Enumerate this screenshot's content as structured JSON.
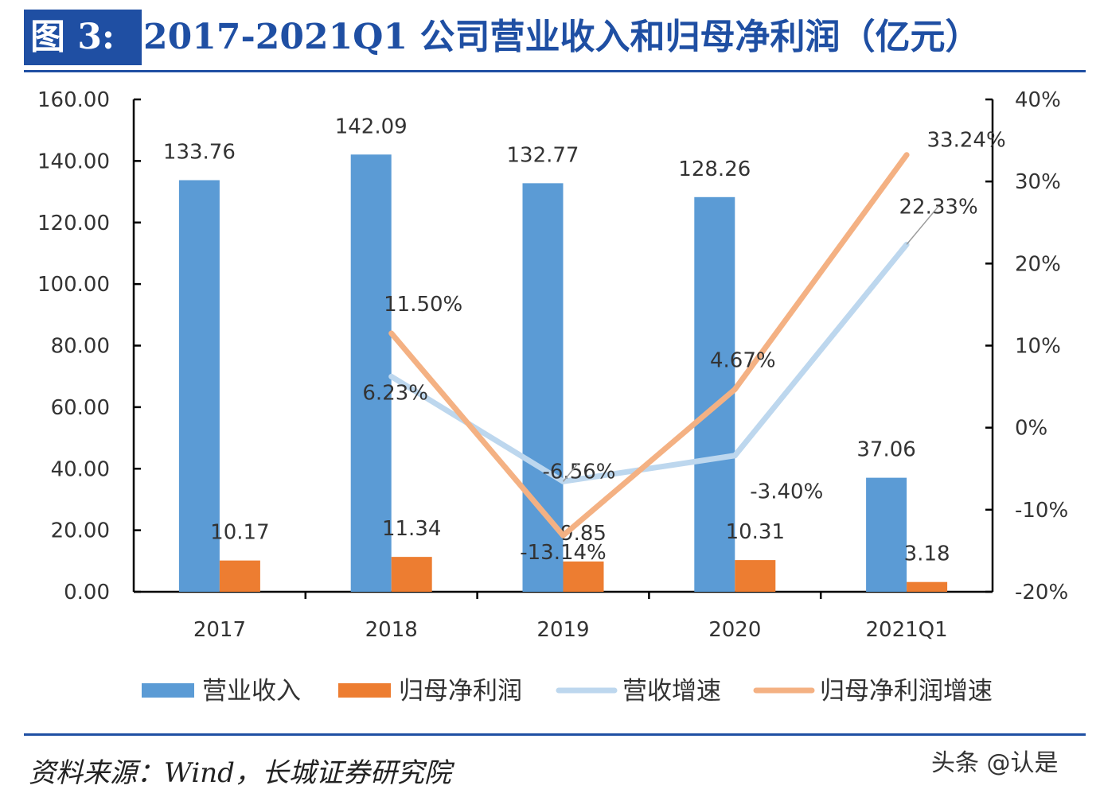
{
  "header": {
    "badge": "图 3:",
    "title": "2017-2021Q1 公司营业收入和归母净利润（亿元）"
  },
  "footer": {
    "source": "资料来源：Wind，长城证券研究院",
    "watermark": "头条 @认是"
  },
  "colors": {
    "brand": "#1f4fa3",
    "revenue": "#5b9bd5",
    "profit": "#ed7d31",
    "revenue_growth": "#bdd7ee",
    "profit_growth": "#f4b183"
  },
  "chart_data": {
    "type": "bar",
    "categories": [
      "2017",
      "2018",
      "2019",
      "2020",
      "2021Q1"
    ],
    "series": [
      {
        "name": "营业收入",
        "kind": "bar",
        "axis": "left",
        "values": [
          133.76,
          142.09,
          132.77,
          128.26,
          37.06
        ],
        "labels": [
          "133.76",
          "142.09",
          "132.77",
          "128.26",
          "37.06"
        ]
      },
      {
        "name": "归母净利润",
        "kind": "bar",
        "axis": "left",
        "values": [
          10.17,
          11.34,
          9.85,
          10.31,
          3.18
        ],
        "labels": [
          "10.17",
          "11.34",
          "9.85",
          "10.31",
          "3.18"
        ]
      },
      {
        "name": "营收增速",
        "kind": "line",
        "axis": "right",
        "values": [
          null,
          6.23,
          -6.56,
          -3.4,
          22.33
        ],
        "labels": [
          "",
          "6.23%",
          "-6.56%",
          "-3.40%",
          "22.33%"
        ]
      },
      {
        "name": "归母净利润增速",
        "kind": "line",
        "axis": "right",
        "values": [
          null,
          11.5,
          -13.14,
          4.67,
          33.24
        ],
        "labels": [
          "",
          "11.50%",
          "-13.14%",
          "4.67%",
          "33.24%"
        ]
      }
    ],
    "left_axis": {
      "ylim": [
        0,
        160
      ],
      "ticks": [
        "0.00",
        "20.00",
        "40.00",
        "60.00",
        "80.00",
        "100.00",
        "120.00",
        "140.00",
        "160.00"
      ]
    },
    "right_axis": {
      "ylim": [
        -20,
        40
      ],
      "ticks": [
        "-20%",
        "-10%",
        "0%",
        "10%",
        "20%",
        "30%",
        "40%"
      ]
    },
    "legend": {
      "placement": "bottom"
    },
    "grid": false
  }
}
